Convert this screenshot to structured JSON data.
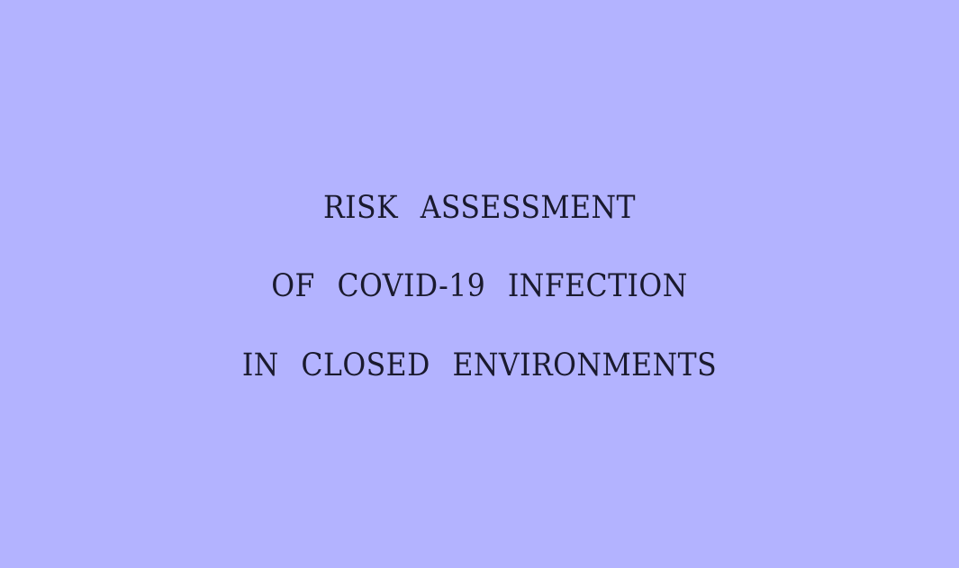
{
  "title": {
    "lines": [
      "RISK ASSESSMENT",
      "OF COVID-19 INFECTION",
      "IN CLOSED ENVIRONMENTS"
    ]
  },
  "colors": {
    "background": "#b3b3ff",
    "text": "#1a1a2e"
  }
}
